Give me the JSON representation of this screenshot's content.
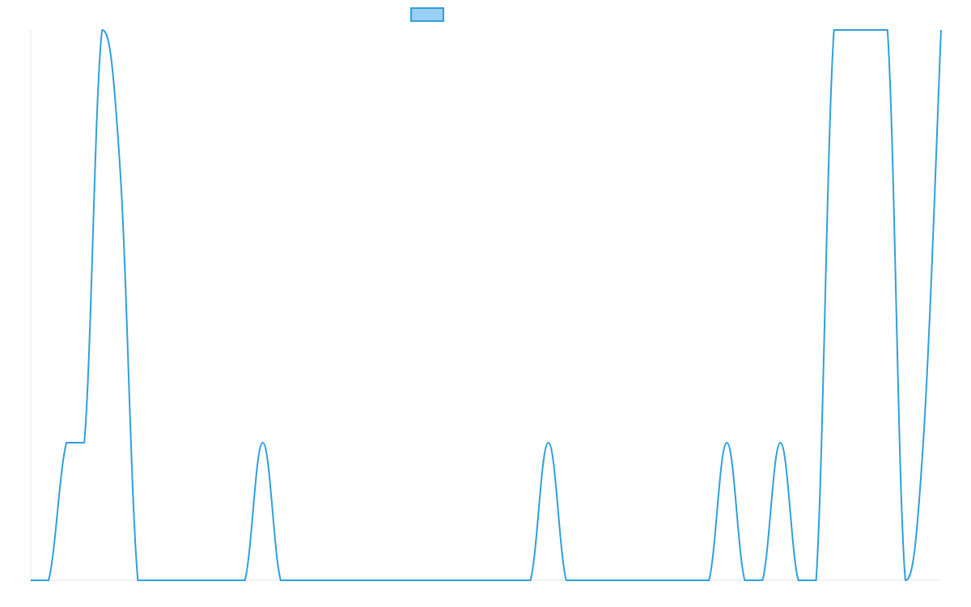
{
  "chart_data": {
    "type": "line",
    "title": "",
    "xlabel": "",
    "ylabel": "",
    "x": [
      0,
      1,
      2,
      3,
      4,
      5,
      6,
      7,
      8,
      9,
      10,
      11,
      12,
      13,
      14,
      15,
      16,
      17,
      18,
      19,
      20,
      21,
      22,
      23,
      24,
      25,
      26,
      27,
      28,
      29,
      30,
      31,
      32,
      33,
      34,
      35,
      36,
      37,
      38,
      39,
      40,
      41,
      42,
      43,
      44,
      45,
      46,
      47,
      48,
      49,
      50,
      51
    ],
    "series": [
      {
        "name": "",
        "color": "#2f9fe0",
        "fill": "#9ad0f5",
        "values": [
          0,
          0,
          1,
          1,
          4,
          3,
          0,
          0,
          0,
          0,
          0,
          0,
          0,
          1,
          0,
          0,
          0,
          0,
          0,
          0,
          0,
          0,
          0,
          0,
          0,
          0,
          0,
          0,
          0,
          1,
          0,
          0,
          0,
          0,
          0,
          0,
          0,
          0,
          0,
          1,
          0,
          0,
          1,
          0,
          0,
          4,
          4,
          4,
          4,
          0,
          1,
          4
        ]
      }
    ],
    "xlim": [
      0,
      51
    ],
    "ylim": [
      0,
      4
    ],
    "grid": false,
    "legend": "top-center"
  }
}
